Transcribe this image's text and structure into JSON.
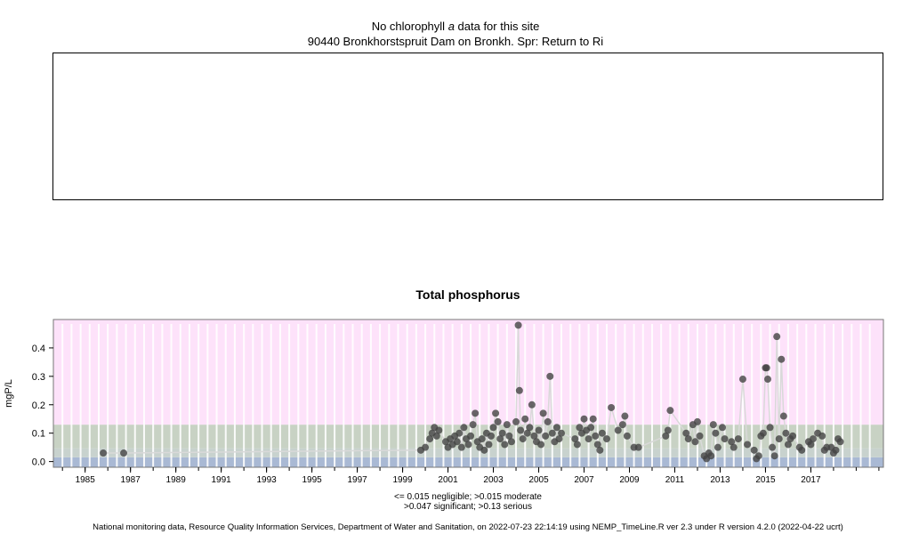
{
  "header": {
    "line1_prefix": "No chlorophyll ",
    "line1_italic": "a",
    "line1_suffix": " data for this site",
    "line2": "90440 Bronkhorstspruit Dam on Bronkh. Spr: Return to Ri"
  },
  "chart_data": {
    "type": "scatter",
    "title": "Total phosphorus",
    "ylabel": "mgP/L",
    "xlabel": "",
    "xlim": [
      1983.6,
      2020.2
    ],
    "ylim": [
      -0.02,
      0.5
    ],
    "yticks": [
      0.0,
      0.1,
      0.2,
      0.3,
      0.4
    ],
    "ytick_labels": [
      "0.0",
      "0.1",
      "0.2",
      "0.3",
      "0.4"
    ],
    "xticks": [
      1985,
      1987,
      1989,
      1991,
      1993,
      1995,
      1997,
      1999,
      2001,
      2003,
      2005,
      2007,
      2009,
      2011,
      2013,
      2015,
      2017
    ],
    "xtick_labels": [
      "1985",
      "1987",
      "1989",
      "1991",
      "1993",
      "1995",
      "1997",
      "1999",
      "2001",
      "2003",
      "2005",
      "2007",
      "2009",
      "2011",
      "2013",
      "2015",
      "2017"
    ],
    "bands": [
      {
        "from": -0.02,
        "to": 0.015,
        "color": "#a9b9d4",
        "label": "negligible"
      },
      {
        "from": 0.015,
        "to": 0.047,
        "color": "#c8d2ce",
        "label": "moderate"
      },
      {
        "from": 0.047,
        "to": 0.13,
        "color": "#c8d2c4",
        "label": "significant"
      },
      {
        "from": 0.13,
        "to": 0.5,
        "color": "#fde2fa",
        "label": "serious"
      }
    ],
    "point_color": "#444444",
    "trend_color": "#d9d9d9",
    "points": [
      [
        1985.8,
        0.03
      ],
      [
        1986.7,
        0.03
      ],
      [
        1999.8,
        0.04
      ],
      [
        2000.0,
        0.05
      ],
      [
        2000.2,
        0.08
      ],
      [
        2000.3,
        0.1
      ],
      [
        2000.4,
        0.12
      ],
      [
        2000.5,
        0.09
      ],
      [
        2000.6,
        0.11
      ],
      [
        2000.9,
        0.07
      ],
      [
        2001.0,
        0.05
      ],
      [
        2001.1,
        0.08
      ],
      [
        2001.2,
        0.06
      ],
      [
        2001.3,
        0.09
      ],
      [
        2001.4,
        0.07
      ],
      [
        2001.5,
        0.1
      ],
      [
        2001.6,
        0.05
      ],
      [
        2001.7,
        0.12
      ],
      [
        2001.8,
        0.08
      ],
      [
        2001.9,
        0.06
      ],
      [
        2002.0,
        0.09
      ],
      [
        2002.1,
        0.13
      ],
      [
        2002.2,
        0.17
      ],
      [
        2002.3,
        0.07
      ],
      [
        2002.4,
        0.05
      ],
      [
        2002.5,
        0.08
      ],
      [
        2002.6,
        0.04
      ],
      [
        2002.7,
        0.1
      ],
      [
        2002.8,
        0.06
      ],
      [
        2002.9,
        0.09
      ],
      [
        2003.0,
        0.12
      ],
      [
        2003.1,
        0.17
      ],
      [
        2003.2,
        0.14
      ],
      [
        2003.3,
        0.08
      ],
      [
        2003.4,
        0.1
      ],
      [
        2003.5,
        0.06
      ],
      [
        2003.6,
        0.13
      ],
      [
        2003.7,
        0.09
      ],
      [
        2003.8,
        0.07
      ],
      [
        2004.0,
        0.14
      ],
      [
        2004.1,
        0.48
      ],
      [
        2004.15,
        0.25
      ],
      [
        2004.2,
        0.11
      ],
      [
        2004.3,
        0.08
      ],
      [
        2004.4,
        0.15
      ],
      [
        2004.5,
        0.1
      ],
      [
        2004.6,
        0.12
      ],
      [
        2004.7,
        0.2
      ],
      [
        2004.8,
        0.09
      ],
      [
        2004.9,
        0.07
      ],
      [
        2005.0,
        0.11
      ],
      [
        2005.1,
        0.06
      ],
      [
        2005.2,
        0.17
      ],
      [
        2005.3,
        0.09
      ],
      [
        2005.4,
        0.14
      ],
      [
        2005.5,
        0.3
      ],
      [
        2005.6,
        0.1
      ],
      [
        2005.7,
        0.07
      ],
      [
        2005.8,
        0.12
      ],
      [
        2005.9,
        0.08
      ],
      [
        2006.0,
        0.1
      ],
      [
        2006.6,
        0.08
      ],
      [
        2006.7,
        0.06
      ],
      [
        2006.8,
        0.12
      ],
      [
        2006.9,
        0.1
      ],
      [
        2007.0,
        0.15
      ],
      [
        2007.1,
        0.11
      ],
      [
        2007.2,
        0.08
      ],
      [
        2007.3,
        0.12
      ],
      [
        2007.4,
        0.15
      ],
      [
        2007.5,
        0.09
      ],
      [
        2007.6,
        0.06
      ],
      [
        2007.7,
        0.04
      ],
      [
        2007.8,
        0.1
      ],
      [
        2008.0,
        0.08
      ],
      [
        2008.2,
        0.19
      ],
      [
        2008.5,
        0.11
      ],
      [
        2008.7,
        0.13
      ],
      [
        2008.8,
        0.16
      ],
      [
        2008.9,
        0.09
      ],
      [
        2009.2,
        0.05
      ],
      [
        2009.4,
        0.05
      ],
      [
        2010.6,
        0.09
      ],
      [
        2010.7,
        0.11
      ],
      [
        2010.8,
        0.18
      ],
      [
        2011.5,
        0.1
      ],
      [
        2011.6,
        0.08
      ],
      [
        2011.8,
        0.13
      ],
      [
        2011.9,
        0.07
      ],
      [
        2012.0,
        0.14
      ],
      [
        2012.1,
        0.09
      ],
      [
        2012.3,
        0.02
      ],
      [
        2012.4,
        0.01
      ],
      [
        2012.5,
        0.03
      ],
      [
        2012.6,
        0.02
      ],
      [
        2012.7,
        0.13
      ],
      [
        2012.8,
        0.1
      ],
      [
        2012.9,
        0.05
      ],
      [
        2013.1,
        0.12
      ],
      [
        2013.2,
        0.08
      ],
      [
        2013.5,
        0.07
      ],
      [
        2013.6,
        0.05
      ],
      [
        2013.8,
        0.08
      ],
      [
        2014.0,
        0.29
      ],
      [
        2014.2,
        0.06
      ],
      [
        2014.5,
        0.04
      ],
      [
        2014.6,
        0.01
      ],
      [
        2014.7,
        0.02
      ],
      [
        2014.8,
        0.09
      ],
      [
        2014.9,
        0.1
      ],
      [
        2015.0,
        0.33
      ],
      [
        2015.05,
        0.33
      ],
      [
        2015.1,
        0.29
      ],
      [
        2015.2,
        0.12
      ],
      [
        2015.3,
        0.05
      ],
      [
        2015.4,
        0.02
      ],
      [
        2015.5,
        0.44
      ],
      [
        2015.6,
        0.08
      ],
      [
        2015.7,
        0.36
      ],
      [
        2015.8,
        0.16
      ],
      [
        2015.9,
        0.1
      ],
      [
        2016.0,
        0.06
      ],
      [
        2016.1,
        0.08
      ],
      [
        2016.2,
        0.09
      ],
      [
        2016.5,
        0.05
      ],
      [
        2016.6,
        0.04
      ],
      [
        2016.9,
        0.07
      ],
      [
        2017.0,
        0.06
      ],
      [
        2017.1,
        0.08
      ],
      [
        2017.3,
        0.1
      ],
      [
        2017.5,
        0.09
      ],
      [
        2017.6,
        0.04
      ],
      [
        2017.7,
        0.05
      ],
      [
        2017.9,
        0.05
      ],
      [
        2018.0,
        0.03
      ],
      [
        2018.1,
        0.04
      ],
      [
        2018.2,
        0.08
      ],
      [
        2018.3,
        0.07
      ]
    ]
  },
  "legend_caption": {
    "line1": "<= 0.015 negligible; >0.015 moderate",
    "line2": ">0.047 significant; >0.13 serious"
  },
  "footer": {
    "text": "National monitoring data, Resource Quality Information Services, Department of Water and Sanitation, on 2022-07-23 22:14:19 using NEMP_TimeLine.R ver 2.3 under R version 4.2.0 (2022-04-22 ucrt)"
  }
}
